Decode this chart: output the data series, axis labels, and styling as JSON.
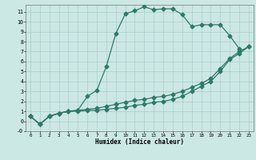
{
  "xlabel": "Humidex (Indice chaleur)",
  "bg_color": "#cce8e4",
  "grid_color": "#aacccc",
  "line_color": "#2d7a6a",
  "xlim": [
    -0.5,
    23.5
  ],
  "ylim": [
    -0.7,
    11.7
  ],
  "xticks": [
    0,
    1,
    2,
    3,
    4,
    5,
    6,
    7,
    8,
    9,
    10,
    11,
    12,
    13,
    14,
    15,
    16,
    17,
    18,
    19,
    20,
    21,
    22,
    23
  ],
  "yticks": [
    -1,
    0,
    1,
    2,
    3,
    4,
    5,
    6,
    7,
    8,
    9,
    10,
    11
  ],
  "ytick_labels": [
    "-0",
    "0",
    "1",
    "2",
    "3",
    "4",
    "5",
    "6",
    "7",
    "8",
    "9",
    "10",
    "11"
  ],
  "line1_x": [
    0,
    1,
    2,
    3,
    4,
    5,
    6,
    7,
    8,
    9,
    10,
    11,
    12,
    13,
    14,
    15,
    16,
    17,
    18,
    19,
    20,
    21,
    22
  ],
  "line1_y": [
    0.5,
    -0.3,
    0.5,
    0.8,
    1.0,
    1.1,
    2.5,
    3.1,
    5.5,
    8.8,
    10.8,
    11.1,
    11.5,
    11.2,
    11.3,
    11.3,
    10.7,
    9.5,
    9.7,
    9.7,
    9.7,
    8.6,
    7.3
  ],
  "line2_x": [
    0,
    1,
    2,
    3,
    4,
    5,
    6,
    7,
    8,
    9,
    10,
    11,
    12,
    13,
    14,
    15,
    16,
    17,
    18,
    19,
    20,
    21,
    22,
    23
  ],
  "line2_y": [
    0.5,
    -0.3,
    0.5,
    0.8,
    1.0,
    1.1,
    1.2,
    1.3,
    1.5,
    1.7,
    1.9,
    2.1,
    2.2,
    2.4,
    2.5,
    2.7,
    3.0,
    3.4,
    3.8,
    4.3,
    5.3,
    6.3,
    7.0,
    7.5
  ],
  "line3_x": [
    0,
    1,
    2,
    3,
    4,
    5,
    6,
    7,
    8,
    9,
    10,
    11,
    12,
    13,
    14,
    15,
    16,
    17,
    18,
    19,
    20,
    21,
    22,
    23
  ],
  "line3_y": [
    0.5,
    -0.3,
    0.5,
    0.8,
    1.0,
    1.0,
    1.1,
    1.1,
    1.2,
    1.3,
    1.4,
    1.6,
    1.7,
    1.9,
    2.0,
    2.2,
    2.5,
    3.0,
    3.5,
    4.0,
    5.0,
    6.2,
    6.8,
    7.5
  ]
}
